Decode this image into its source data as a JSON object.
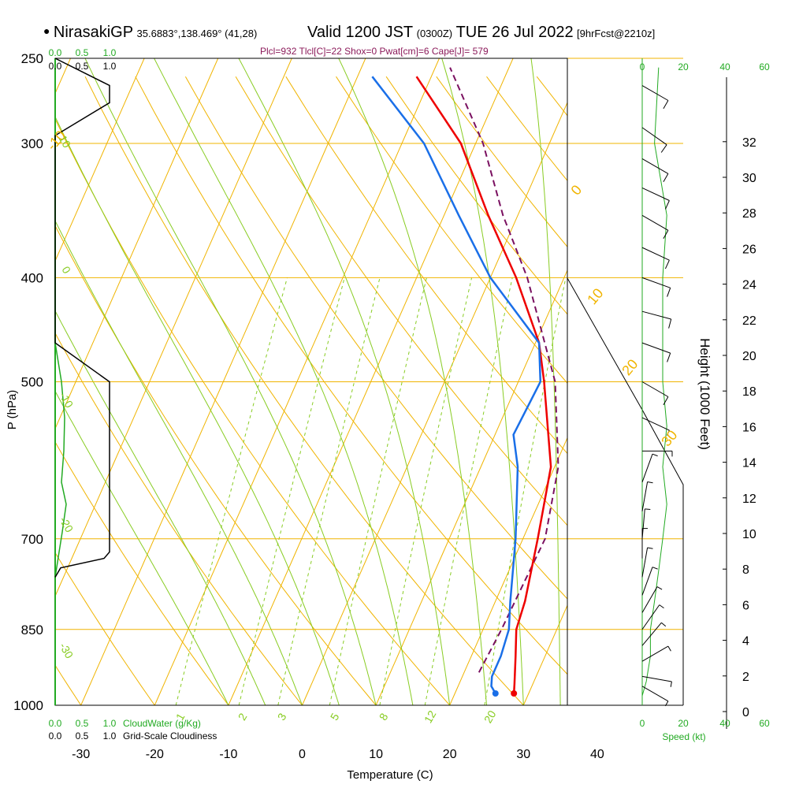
{
  "header": {
    "station": "NirasakiGP",
    "coords": "35.6883°,138.469° (41,28)",
    "valid": "Valid 1200 JST",
    "utc": "(0300Z)",
    "date": "TUE 26 Jul 2022",
    "forecast": "[9hrFcst@2210z]",
    "params": "Plcl=932 Tlcl[C]=22 Shox=0 Pwat[cm]=6 Cape[J]= 579"
  },
  "colors": {
    "isobar": "#f0b400",
    "dry_adiabat": "#f0b400",
    "moist_adiabat": "#88cc22",
    "mixing_ratio": "#88cc22",
    "temperature": "#ee0000",
    "dewpoint": "#1a6fe8",
    "parcel": "#7a1060",
    "cloud_water": "#22aa22",
    "cloudiness": "#000000",
    "wind_speed": "#22aa22"
  },
  "chart_data": {
    "type": "skew-t",
    "xlabel": "Temperature (C)",
    "ylabel": "P (hPa)",
    "y2label": "Height (1000 Feet)",
    "x_ticks": [
      "-30",
      "-20",
      "-10",
      "0",
      "10",
      "20",
      "30",
      "40"
    ],
    "p_ticks": [
      "250",
      "300",
      "400",
      "500",
      "700",
      "850",
      "1000"
    ],
    "height_ticks": [
      "0",
      "2",
      "4",
      "6",
      "8",
      "10",
      "12",
      "14",
      "16",
      "18",
      "20",
      "22",
      "24",
      "26",
      "28",
      "30",
      "32"
    ],
    "mixing_ratio_labels": [
      "1",
      "2",
      "3",
      "5",
      "8",
      "12",
      "20"
    ],
    "dry_adiabat_labels": [
      "-10",
      "0",
      "10",
      "20",
      "30"
    ],
    "moist_adiabat_labels": [
      "10",
      "0",
      "-10",
      "-20",
      "-30"
    ],
    "top_scale_green": [
      "0.0",
      "0.5",
      "1.0"
    ],
    "top_scale_black": [
      "0.0",
      "0.5",
      "1.0"
    ],
    "bottom_scale_green": [
      "0.0",
      "0.5",
      "1.0"
    ],
    "bottom_scale_black": [
      "0.0",
      "0.5",
      "1.0"
    ],
    "cloud_water_label": "CloudWater (g/Kg)",
    "cloudiness_label": "Grid-Scale Cloudiness",
    "speed_ticks": [
      "0",
      "20",
      "40",
      "60"
    ],
    "speed_label": "Speed (kt)",
    "temperature": [
      {
        "p": 975,
        "t": 28
      },
      {
        "p": 955,
        "t": 27.5
      },
      {
        "p": 900,
        "t": 26
      },
      {
        "p": 850,
        "t": 24.5
      },
      {
        "p": 800,
        "t": 24
      },
      {
        "p": 700,
        "t": 22
      },
      {
        "p": 600,
        "t": 19.5
      },
      {
        "p": 500,
        "t": 13.5
      },
      {
        "p": 460,
        "t": 10.5
      },
      {
        "p": 400,
        "t": 3.5
      },
      {
        "p": 350,
        "t": -4
      },
      {
        "p": 300,
        "t": -12
      },
      {
        "p": 260,
        "t": -22
      }
    ],
    "dewpoint": [
      {
        "p": 975,
        "t": 25.5
      },
      {
        "p": 960,
        "t": 24.5
      },
      {
        "p": 940,
        "t": 24
      },
      {
        "p": 900,
        "t": 24
      },
      {
        "p": 850,
        "t": 23.5
      },
      {
        "p": 800,
        "t": 22
      },
      {
        "p": 700,
        "t": 19
      },
      {
        "p": 600,
        "t": 15
      },
      {
        "p": 560,
        "t": 12.5
      },
      {
        "p": 500,
        "t": 13
      },
      {
        "p": 460,
        "t": 10.5
      },
      {
        "p": 400,
        "t": 0
      },
      {
        "p": 350,
        "t": -8
      },
      {
        "p": 300,
        "t": -17
      },
      {
        "p": 260,
        "t": -28
      }
    ],
    "parcel": [
      {
        "p": 932,
        "t": 22
      },
      {
        "p": 850,
        "t": 22.5
      },
      {
        "p": 700,
        "t": 23
      },
      {
        "p": 600,
        "t": 20.5
      },
      {
        "p": 500,
        "t": 15
      },
      {
        "p": 400,
        "t": 5
      },
      {
        "p": 350,
        "t": -2
      },
      {
        "p": 300,
        "t": -9
      },
      {
        "p": 255,
        "t": -18
      }
    ],
    "cloud_water": [
      {
        "p": 250,
        "v": 0
      },
      {
        "p": 460,
        "v": 0
      },
      {
        "p": 500,
        "v": 0.08
      },
      {
        "p": 540,
        "v": 0.12
      },
      {
        "p": 580,
        "v": 0.11
      },
      {
        "p": 620,
        "v": 0.08
      },
      {
        "p": 650,
        "v": 0.14
      },
      {
        "p": 690,
        "v": 0.09
      },
      {
        "p": 720,
        "v": 0.05
      },
      {
        "p": 760,
        "v": 0
      },
      {
        "p": 1000,
        "v": 0
      }
    ],
    "cloudiness": [
      {
        "p": 250,
        "v": 0
      },
      {
        "p": 265,
        "v": 1.0
      },
      {
        "p": 275,
        "v": 1.0
      },
      {
        "p": 295,
        "v": 0
      },
      {
        "p": 460,
        "v": 0
      },
      {
        "p": 500,
        "v": 1.0
      },
      {
        "p": 720,
        "v": 1.0
      },
      {
        "p": 730,
        "v": 0.9
      },
      {
        "p": 745,
        "v": 0.1
      },
      {
        "p": 760,
        "v": 0
      }
    ],
    "wind_speed": [
      {
        "p": 255,
        "s": 4
      },
      {
        "p": 300,
        "s": 3
      },
      {
        "p": 350,
        "s": 6
      },
      {
        "p": 400,
        "s": 5
      },
      {
        "p": 450,
        "s": 5
      },
      {
        "p": 500,
        "s": 5
      },
      {
        "p": 550,
        "s": 6
      },
      {
        "p": 600,
        "s": 5
      },
      {
        "p": 650,
        "s": 6
      },
      {
        "p": 700,
        "s": 5
      },
      {
        "p": 750,
        "s": 4
      },
      {
        "p": 800,
        "s": 3
      },
      {
        "p": 850,
        "s": 2
      },
      {
        "p": 900,
        "s": 2
      },
      {
        "p": 950,
        "s": 1
      },
      {
        "p": 980,
        "s": 0
      }
    ],
    "wind_barbs": [
      {
        "p": 265,
        "dir": 300,
        "s": 10
      },
      {
        "p": 290,
        "dir": 305,
        "s": 10
      },
      {
        "p": 310,
        "dir": 300,
        "s": 10
      },
      {
        "p": 330,
        "dir": 295,
        "s": 10
      },
      {
        "p": 350,
        "dir": 300,
        "s": 10
      },
      {
        "p": 375,
        "dir": 295,
        "s": 10
      },
      {
        "p": 400,
        "dir": 290,
        "s": 10
      },
      {
        "p": 430,
        "dir": 285,
        "s": 10
      },
      {
        "p": 460,
        "dir": 290,
        "s": 10
      },
      {
        "p": 500,
        "dir": 300,
        "s": 10
      },
      {
        "p": 540,
        "dir": 295,
        "s": 5
      },
      {
        "p": 580,
        "dir": 270,
        "s": 5
      },
      {
        "p": 620,
        "dir": 200,
        "s": 5
      },
      {
        "p": 660,
        "dir": 190,
        "s": 5
      },
      {
        "p": 700,
        "dir": 185,
        "s": 5
      },
      {
        "p": 730,
        "dir": 180,
        "s": 5
      },
      {
        "p": 760,
        "dir": 190,
        "s": 5
      },
      {
        "p": 790,
        "dir": 200,
        "s": 5
      },
      {
        "p": 820,
        "dir": 210,
        "s": 5
      },
      {
        "p": 850,
        "dir": 215,
        "s": 5
      },
      {
        "p": 880,
        "dir": 220,
        "s": 5
      },
      {
        "p": 910,
        "dir": 240,
        "s": 5
      },
      {
        "p": 940,
        "dir": 280,
        "s": 5
      },
      {
        "p": 960,
        "dir": 300,
        "s": 5
      }
    ],
    "surface_temperature": {
      "p": 975,
      "t": 28
    },
    "surface_dewpoint": {
      "p": 975,
      "t": 25.5
    }
  }
}
